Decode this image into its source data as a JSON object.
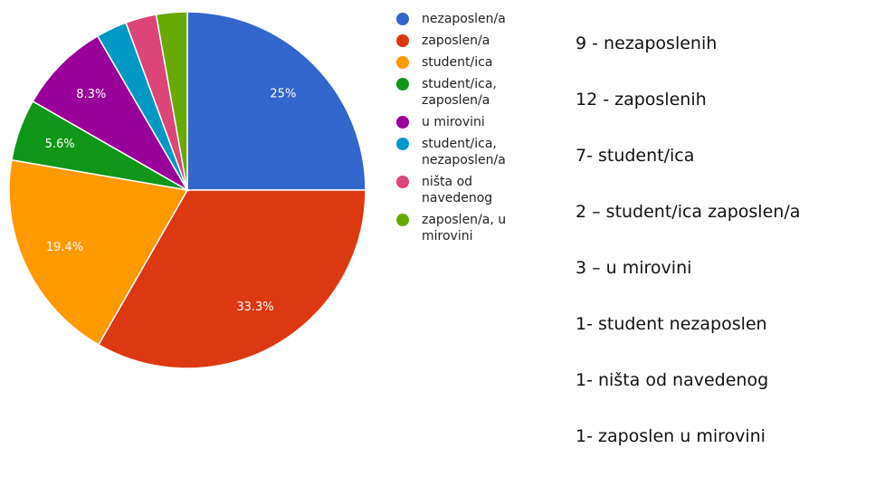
{
  "chart_data": {
    "type": "pie",
    "categories": [
      "nezaposlen/a",
      "zaposlen/a",
      "student/ica",
      "student/ica, zaposlen/a",
      "u mirovini",
      "student/ica, nezaposlen/a",
      "ništa od navedenog",
      "zaposlen/a, u mirovini"
    ],
    "values": [
      25,
      33.3,
      19.4,
      5.6,
      8.3,
      2.8,
      2.8,
      2.8
    ],
    "value_labels": [
      "25%",
      "33.3%",
      "19.4%",
      "5.6%",
      "8.3%",
      null,
      null,
      null
    ],
    "colors": [
      "#3366cc",
      "#dc3912",
      "#ff9900",
      "#109618",
      "#990099",
      "#0099c6",
      "#dd4477",
      "#66aa00"
    ],
    "legend": "right",
    "annotations": [
      "9 - nezaposlenih",
      "12 - zaposlenih",
      "7-  student/ica",
      "2 – student/ica zaposlen/a",
      "3 – u mirovini",
      "1- student nezaposlen",
      "1- ništa od navedenog",
      "1- zaposlen u mirovini"
    ]
  }
}
